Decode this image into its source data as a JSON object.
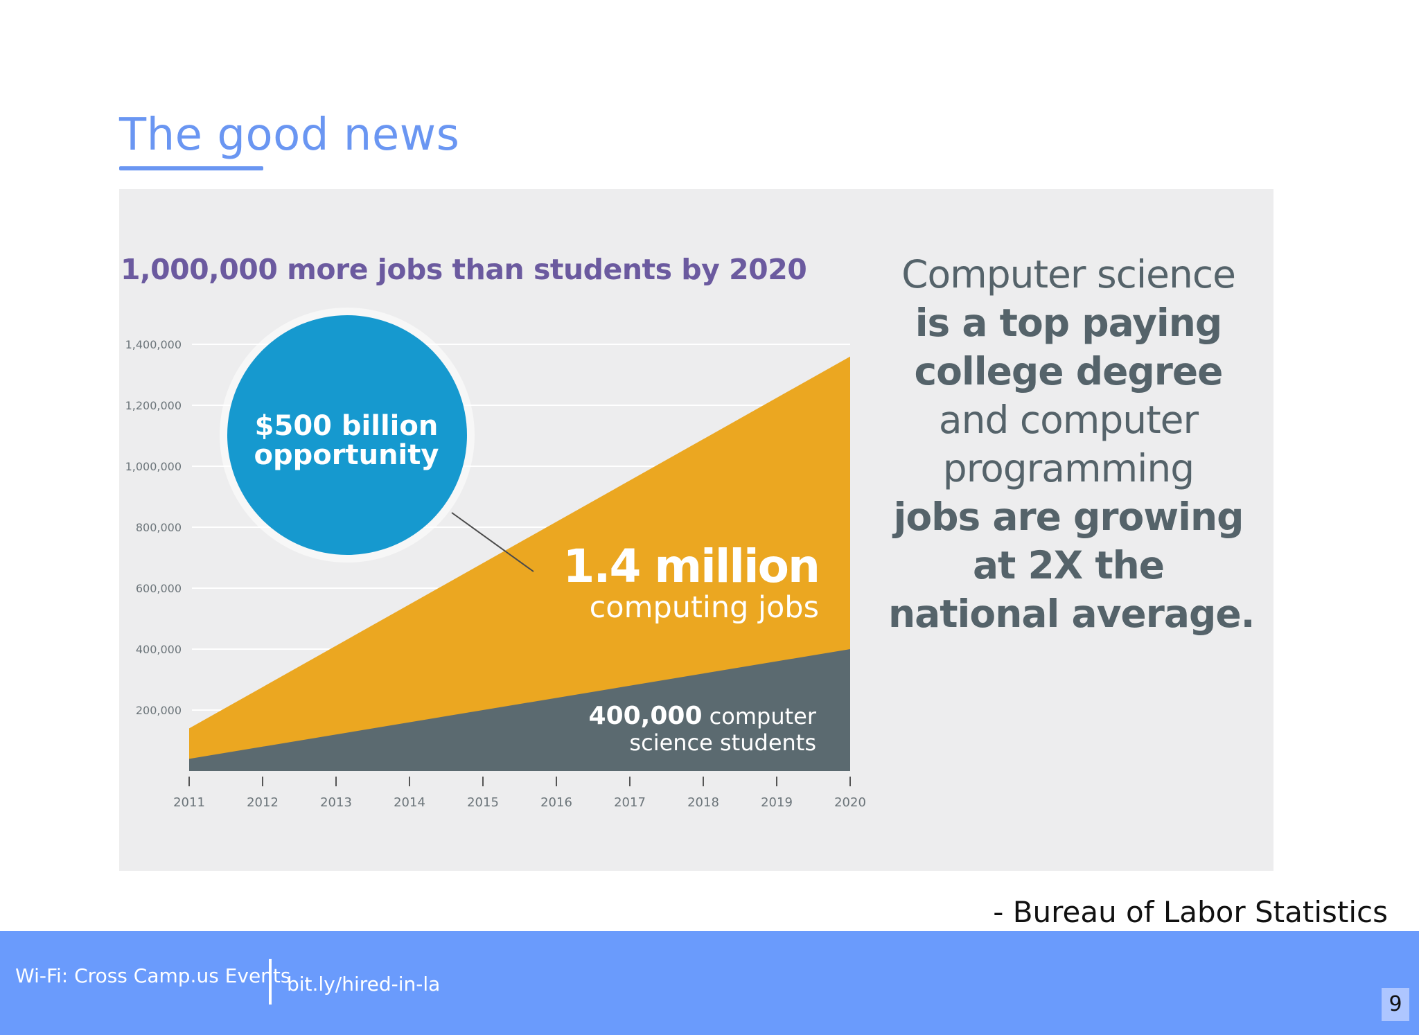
{
  "slide": {
    "title": "The good news",
    "attribution": "- Bureau of Labor Statistics",
    "page_number": "9"
  },
  "footer": {
    "wifi": "Wi-Fi: Cross Camp.us Events",
    "link": "bit.ly/hired-in-la"
  },
  "infographic": {
    "headline": "1,000,000 more jobs than students by 2020",
    "bubble_line1": "$500 billion",
    "bubble_line2": "opportunity",
    "jobs_big": "1.4 million",
    "jobs_small": "computing jobs",
    "students_bold": "400,000",
    "students_rest": " computer",
    "students_line2": "science students",
    "side_text": {
      "l1": "Computer science",
      "l2": "is a top paying",
      "l3": "college degree",
      "l4": "and computer",
      "l5": "programming",
      "l6": "jobs are growing",
      "l7": "at 2X the",
      "l8": "national average."
    }
  },
  "chart_data": {
    "type": "area",
    "title": "1,000,000 more jobs than students by 2020",
    "x": [
      2011,
      2020
    ],
    "series": [
      {
        "name": "computing jobs",
        "values": [
          140000,
          1360000
        ],
        "color": "#eba721"
      },
      {
        "name": "computer science students",
        "values": [
          40000,
          400000
        ],
        "color": "#5b6a70"
      }
    ],
    "xticks": [
      "2011",
      "2012",
      "2013",
      "2014",
      "2015",
      "2016",
      "2017",
      "2018",
      "2019",
      "2020"
    ],
    "yticks": [
      "200,000",
      "400,000",
      "600,000",
      "800,000",
      "1,000,000",
      "1,200,000",
      "1,400,000"
    ],
    "ytick_values": [
      200000,
      400000,
      600000,
      800000,
      1000000,
      1200000,
      1400000
    ],
    "ylim": [
      0,
      1400000
    ],
    "grid": true,
    "colors": {
      "bubble": "#1699cf",
      "gridline": "#ffffff",
      "tick_text": "#6b7479"
    }
  }
}
